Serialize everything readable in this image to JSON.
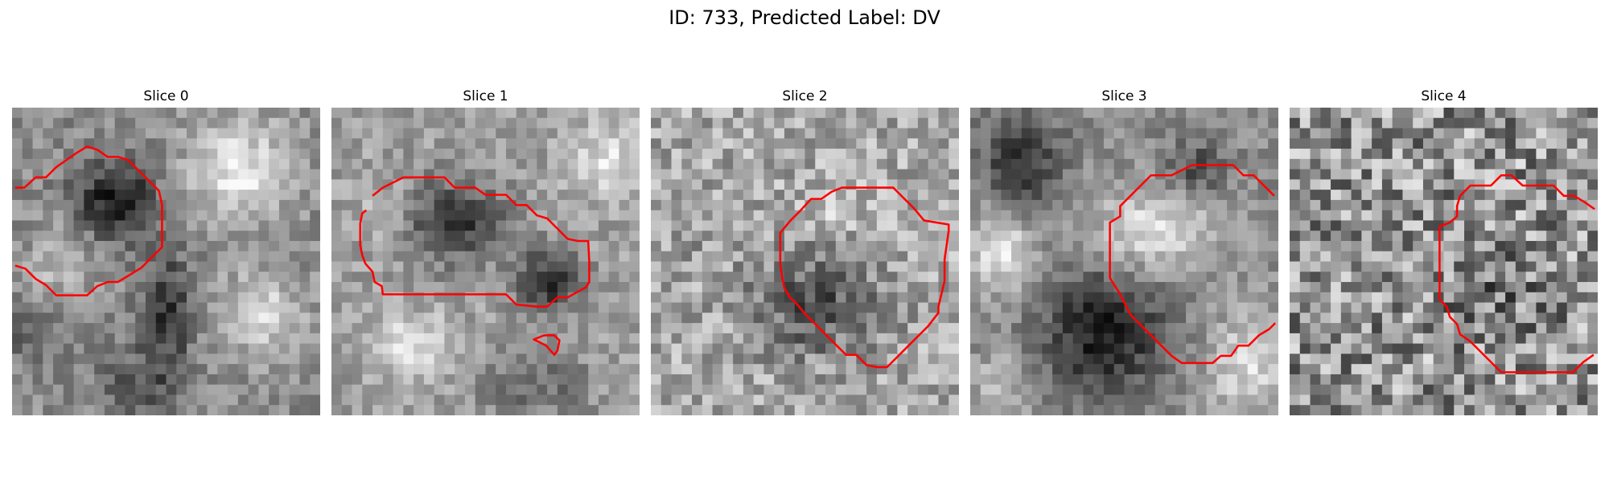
{
  "title": "ID: 733, Predicted Label: DV",
  "contour_color": "#ff0000",
  "panels": [
    {
      "label": "Slice 0",
      "pattern": "slice0-grayscale-with-contour"
    },
    {
      "label": "Slice 1",
      "pattern": "slice1-grayscale-with-contour"
    },
    {
      "label": "Slice 2",
      "pattern": "slice2-grayscale-with-contour"
    },
    {
      "label": "Slice 3",
      "pattern": "slice3-grayscale-with-contour"
    },
    {
      "label": "Slice 4",
      "pattern": "slice4-grayscale-with-contour"
    }
  ]
}
